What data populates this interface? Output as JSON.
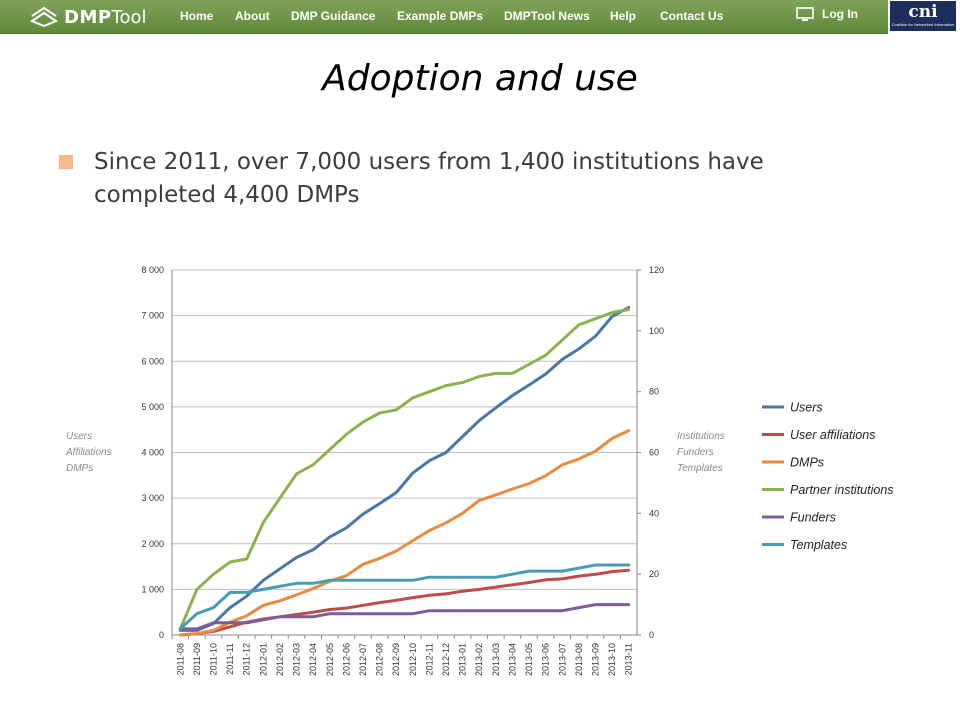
{
  "header": {
    "brand": "DMPTool",
    "brand_part1": "DMP",
    "brand_part2": "Tool",
    "nav": [
      "Home",
      "About",
      "DMP Guidance",
      "Example DMPs",
      "DMPTool News",
      "Help",
      "Contact Us"
    ],
    "login_label": "Log In",
    "partner_logo_text": "cni",
    "partner_logo_subtext": "Coalition for Networked Information",
    "colors": {
      "bar": "#6e9a48",
      "logo_bg": "#1c2f5c"
    }
  },
  "slide": {
    "title": "Adoption and use",
    "bullet": "Since 2011, over 7,000 users from 1,400 institutions have completed 4,400 DMPs",
    "bullet_color": "#f9b88a"
  },
  "chart_data": {
    "type": "line",
    "categories": [
      "2011-08",
      "2011-09",
      "2011-10",
      "2011-11",
      "2011-12",
      "2012-01",
      "2012-02",
      "2012-03",
      "2012-04",
      "2012-05",
      "2012-06",
      "2012-07",
      "2012-08",
      "2012-09",
      "2012-10",
      "2012-11",
      "2012-12",
      "2013-01",
      "2013-02",
      "2013-03",
      "2013-04",
      "2013-05",
      "2013-06",
      "2013-07",
      "2013-08",
      "2013-09",
      "2013-10",
      "2013-11"
    ],
    "y_left": {
      "labels": [
        "Users",
        "Affiliations",
        "DMPs"
      ],
      "range": [
        0,
        8000
      ],
      "ticks": [
        "0",
        "1 000",
        "2 000",
        "3 000",
        "4 000",
        "5 000",
        "6 000",
        "7 000",
        "8 000"
      ]
    },
    "y_right": {
      "labels": [
        "Institutions",
        "Funders",
        "Templates"
      ],
      "range": [
        0,
        120
      ],
      "ticks": [
        "0",
        "20",
        "40",
        "60",
        "80",
        "100",
        "120"
      ]
    },
    "grid": true,
    "legend_position": "right",
    "series": [
      {
        "name": "Users",
        "axis": "left",
        "color": "#4a76a8",
        "values": [
          100,
          100,
          250,
          600,
          850,
          1200,
          1450,
          1700,
          1870,
          2150,
          2350,
          2650,
          2880,
          3120,
          3550,
          3820,
          4000,
          4350,
          4700,
          4980,
          5250,
          5480,
          5720,
          6040,
          6270,
          6550,
          6980,
          7180
        ]
      },
      {
        "name": "User affiliations",
        "axis": "left",
        "color": "#be4b48",
        "values": [
          0,
          30,
          80,
          180,
          280,
          350,
          400,
          450,
          500,
          560,
          590,
          650,
          710,
          760,
          820,
          870,
          900,
          960,
          1000,
          1050,
          1100,
          1150,
          1210,
          1230,
          1290,
          1330,
          1390,
          1420
        ]
      },
      {
        "name": "DMPs",
        "axis": "left",
        "color": "#e98a3e",
        "values": [
          0,
          30,
          100,
          280,
          420,
          650,
          750,
          880,
          1020,
          1180,
          1300,
          1550,
          1680,
          1840,
          2070,
          2290,
          2460,
          2670,
          2950,
          3070,
          3200,
          3320,
          3490,
          3730,
          3860,
          4030,
          4310,
          4480
        ]
      },
      {
        "name": "Partner institutions",
        "axis": "right",
        "color": "#8cb250",
        "values": [
          2,
          15,
          20,
          24,
          25,
          37,
          45,
          53,
          56,
          61,
          66,
          70,
          73,
          74,
          78,
          80,
          82,
          83,
          85,
          86,
          86,
          89,
          92,
          97,
          102,
          104,
          106,
          107
        ]
      },
      {
        "name": "Funders",
        "axis": "right",
        "color": "#7d5c98",
        "values": [
          2,
          2,
          4,
          4,
          4,
          5,
          6,
          6,
          6,
          7,
          7,
          7,
          7,
          7,
          7,
          8,
          8,
          8,
          8,
          8,
          8,
          8,
          8,
          8,
          9,
          10,
          10,
          10
        ]
      },
      {
        "name": "Templates",
        "axis": "right",
        "color": "#4a9bb1",
        "values": [
          2,
          7,
          9,
          14,
          14,
          15,
          16,
          17,
          17,
          18,
          18,
          18,
          18,
          18,
          18,
          19,
          19,
          19,
          19,
          19,
          20,
          21,
          21,
          21,
          22,
          23,
          23,
          23
        ]
      }
    ]
  }
}
